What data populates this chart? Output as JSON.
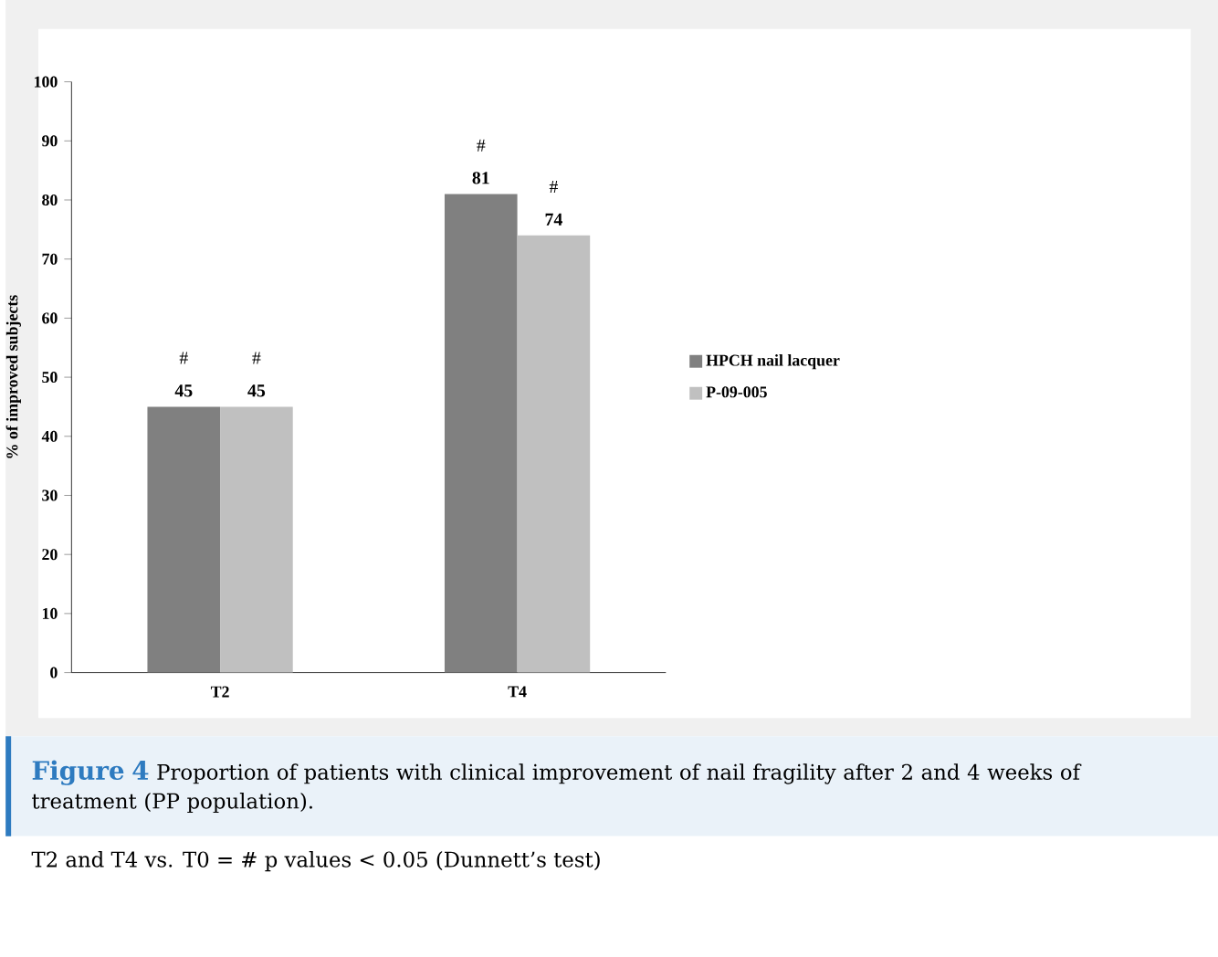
{
  "chart_data": {
    "type": "bar",
    "ylabel": "% of improved subjects",
    "categories": [
      "T2",
      "T4"
    ],
    "series": [
      {
        "name": "HPCH nail lacquer",
        "color": "#808080",
        "values": [
          45,
          81
        ]
      },
      {
        "name": "P-09-005",
        "color": "#c0c0c0",
        "values": [
          45,
          74
        ]
      }
    ],
    "ylim": [
      0,
      100
    ],
    "yticks": [
      0,
      10,
      20,
      30,
      40,
      50,
      60,
      70,
      80,
      90,
      100
    ],
    "data_labels": true,
    "legend": "right",
    "grid": false,
    "annotations": [
      {
        "text": "#",
        "x": "T2",
        "y": 45
      },
      {
        "text": "#",
        "x": "T2",
        "y": 45
      },
      {
        "text": "#",
        "x": "T4",
        "y": 81
      },
      {
        "text": "#",
        "x": "T4",
        "y": 74
      },
      "Figure 4",
      "Proportion of patients with clinical improvement of nail fragility after 2 and 4 weeks of treatment (PP population).",
      "T2 and T4 vs. T0 = # p values < 0.05 (Dunnett’s test)"
    ]
  }
}
